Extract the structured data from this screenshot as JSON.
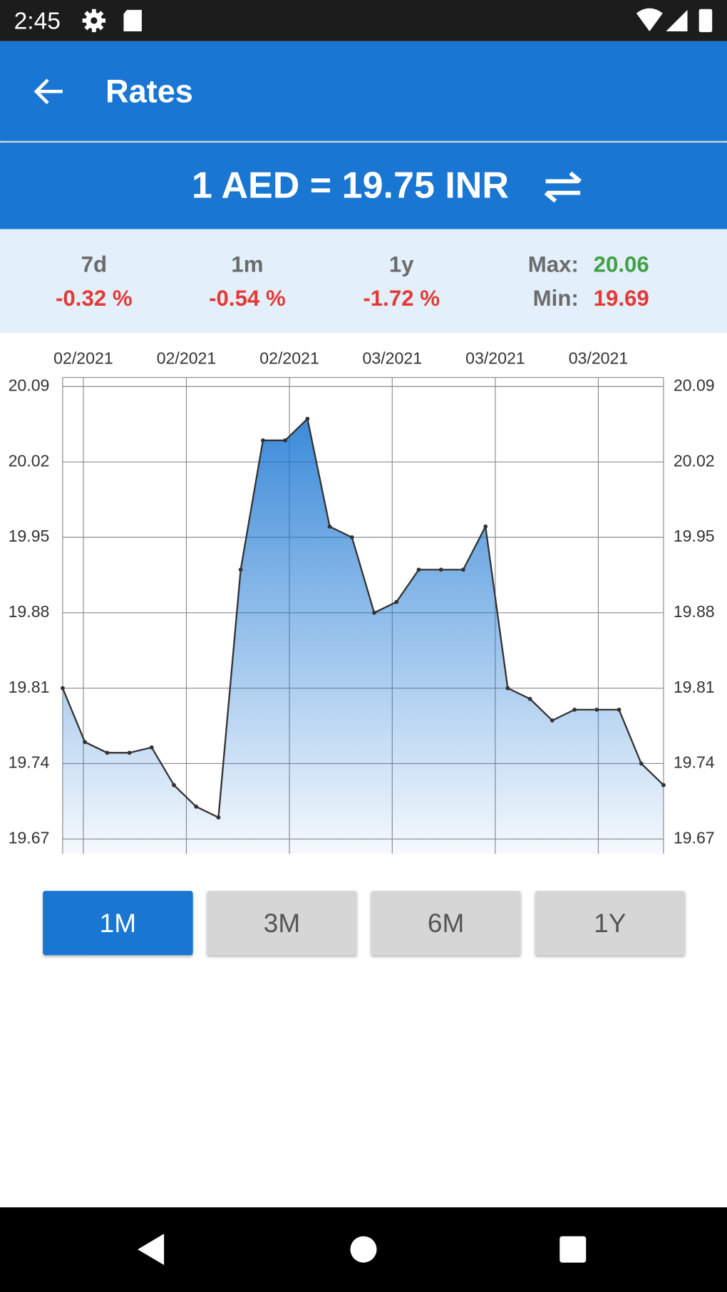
{
  "status_bar": {
    "time": "2:45"
  },
  "app_bar": {
    "title": "Rates"
  },
  "rate": {
    "text": "1 AED = 19.75 INR"
  },
  "stats": [
    {
      "label": "7d",
      "value": "-0.32 %"
    },
    {
      "label": "1m",
      "value": "-0.54 %"
    },
    {
      "label": "1y",
      "value": "-1.72 %"
    }
  ],
  "max": {
    "label": "Max:",
    "value": "20.06"
  },
  "min": {
    "label": "Min:",
    "value": "19.69"
  },
  "chart_data": {
    "type": "area",
    "values": [
      19.81,
      19.76,
      19.75,
      19.75,
      19.755,
      19.72,
      19.7,
      19.69,
      19.92,
      20.04,
      20.04,
      20.06,
      19.96,
      19.95,
      19.88,
      19.89,
      19.92,
      19.92,
      19.92,
      19.96,
      19.81,
      19.8,
      19.78,
      19.79,
      19.79,
      19.79,
      19.74,
      19.72
    ],
    "color": "#1976d2",
    "line_color": "#333333",
    "xlim": [
      0,
      27
    ],
    "xticks": [
      {
        "value": 0.93,
        "label": "02/2021"
      },
      {
        "value": 5.56,
        "label": "02/2021"
      },
      {
        "value": 10.19,
        "label": "02/2021"
      },
      {
        "value": 14.81,
        "label": "03/2021"
      },
      {
        "value": 19.44,
        "label": "03/2021"
      },
      {
        "value": 24.07,
        "label": "03/2021"
      }
    ],
    "ylim": [
      19.67,
      20.09
    ],
    "yticks": [
      19.67,
      19.74,
      19.81,
      19.88,
      19.95,
      20.02,
      20.09
    ],
    "grid": true
  },
  "range_buttons": [
    {
      "label": "1M",
      "selected": true
    },
    {
      "label": "3M",
      "selected": false
    },
    {
      "label": "6M",
      "selected": false
    },
    {
      "label": "1Y",
      "selected": false
    }
  ]
}
